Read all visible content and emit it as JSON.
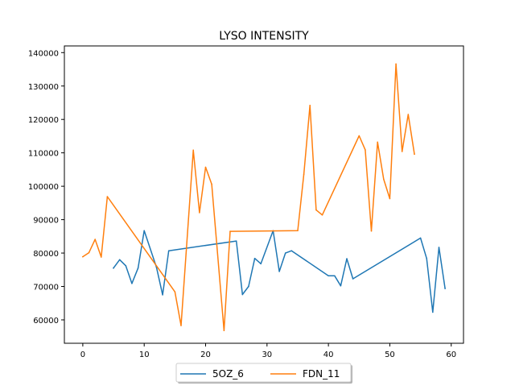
{
  "chart_data": {
    "type": "line",
    "title": "LYSO INTENSITY",
    "xlabel": "",
    "ylabel": "",
    "xlim": [
      -3,
      62
    ],
    "ylim": [
      53000,
      142000
    ],
    "xticks": [
      0,
      10,
      20,
      30,
      40,
      50,
      60
    ],
    "yticks": [
      60000,
      70000,
      80000,
      90000,
      100000,
      110000,
      120000,
      130000,
      140000
    ],
    "grid": false,
    "legend_position": "bottom-center",
    "series": [
      {
        "name": "5OZ_6",
        "color": "#1f77b4",
        "points": [
          [
            5,
            75500
          ],
          [
            6,
            78000
          ],
          [
            7,
            76200
          ],
          [
            8,
            70900
          ],
          [
            9,
            75500
          ],
          [
            10,
            86700
          ],
          [
            12,
            75700
          ],
          [
            13,
            67500
          ],
          [
            14,
            80700
          ],
          [
            25,
            83600
          ],
          [
            26,
            67600
          ],
          [
            27,
            70000
          ],
          [
            28,
            78400
          ],
          [
            29,
            76800
          ],
          [
            31,
            86700
          ],
          [
            32,
            74500
          ],
          [
            33,
            80000
          ],
          [
            34,
            80700
          ],
          [
            40,
            73200
          ],
          [
            41,
            73200
          ],
          [
            42,
            70200
          ],
          [
            43,
            78300
          ],
          [
            44,
            72300
          ],
          [
            55,
            84500
          ],
          [
            56,
            78400
          ],
          [
            57,
            62300
          ],
          [
            58,
            81700
          ],
          [
            59,
            69400
          ]
        ]
      },
      {
        "name": "FDN_11",
        "color": "#ff7f0e",
        "points": [
          [
            0,
            78900
          ],
          [
            1,
            80100
          ],
          [
            2,
            84100
          ],
          [
            3,
            78800
          ],
          [
            4,
            96900
          ],
          [
            15,
            68400
          ],
          [
            16,
            58300
          ],
          [
            18,
            110800
          ],
          [
            19,
            92100
          ],
          [
            20,
            105700
          ],
          [
            21,
            100600
          ],
          [
            23,
            56800
          ],
          [
            24,
            86500
          ],
          [
            35,
            86700
          ],
          [
            36,
            103600
          ],
          [
            37,
            124200
          ],
          [
            38,
            92900
          ],
          [
            39,
            91400
          ],
          [
            45,
            115100
          ],
          [
            46,
            110900
          ],
          [
            47,
            86600
          ],
          [
            48,
            113200
          ],
          [
            49,
            102100
          ],
          [
            50,
            96300
          ],
          [
            51,
            136600
          ],
          [
            52,
            110400
          ],
          [
            53,
            121500
          ],
          [
            54,
            109600
          ]
        ]
      }
    ]
  }
}
